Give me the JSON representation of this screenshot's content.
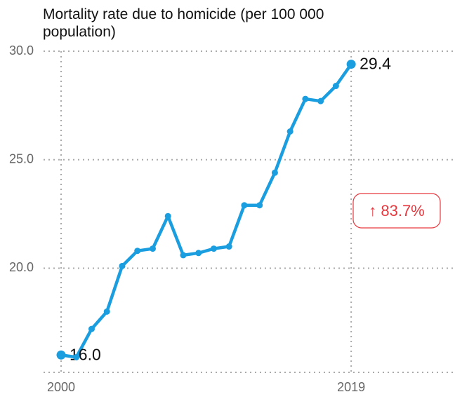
{
  "chart_data": {
    "type": "line",
    "title": "Mortality rate due to homicide (per 100 000 population)",
    "x": [
      2000,
      2001,
      2002,
      2003,
      2004,
      2005,
      2006,
      2007,
      2008,
      2009,
      2010,
      2011,
      2012,
      2013,
      2014,
      2015,
      2016,
      2017,
      2018,
      2019
    ],
    "series": [
      {
        "name": "Mortality rate due to homicide",
        "color": "#1a9ee0",
        "values": [
          16.0,
          15.9,
          17.2,
          18.0,
          20.1,
          20.8,
          20.9,
          22.4,
          20.6,
          20.7,
          20.9,
          21.0,
          22.9,
          22.9,
          24.4,
          26.3,
          27.8,
          27.7,
          28.4,
          29.4
        ],
        "value_labels": [
          "16.0",
          null,
          null,
          null,
          null,
          null,
          null,
          null,
          null,
          null,
          null,
          null,
          null,
          null,
          null,
          null,
          null,
          null,
          null,
          "29.4"
        ]
      }
    ],
    "xlim": [
      1998.85,
      2025.8
    ],
    "xticks": [
      2000,
      2019
    ],
    "ylim": [
      15.2,
      30.0
    ],
    "yticks": [
      {
        "value": 20,
        "label": "20.0"
      },
      {
        "value": 25,
        "label": "25.0"
      },
      {
        "value": 30,
        "label": "30.0"
      }
    ],
    "grid": true,
    "annotation": {
      "text": "↑ 83.7%",
      "color": "#e5393f"
    }
  }
}
